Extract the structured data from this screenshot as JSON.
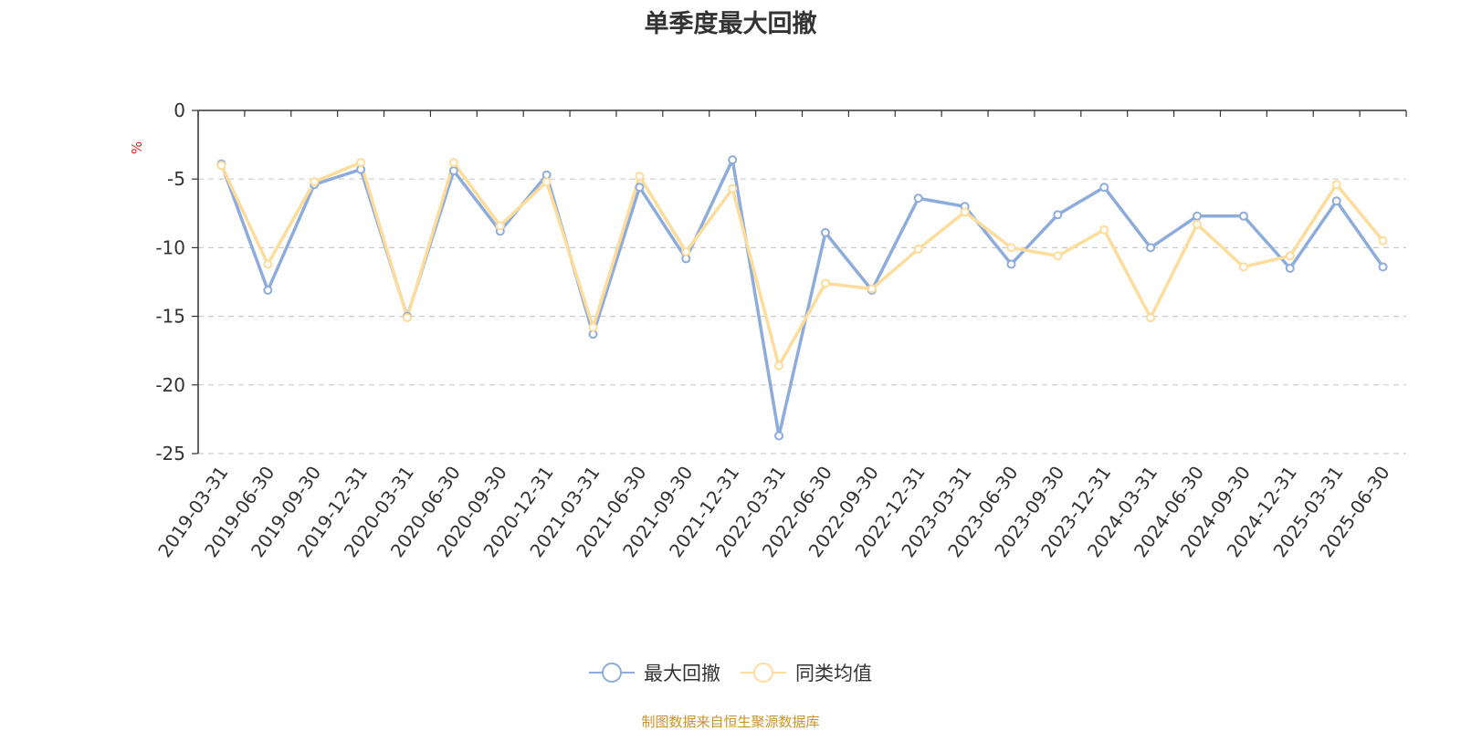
{
  "chart_data": {
    "type": "line",
    "title": "单季度最大回撤",
    "ylabel": "%",
    "xlabel": "",
    "ylim": [
      -25,
      0
    ],
    "yticks": [
      0,
      -5,
      -10,
      -15,
      -20,
      -25
    ],
    "grid": "horizontal dashed",
    "legend_position": "bottom-center",
    "x": [
      "2019-03-31",
      "2019-06-30",
      "2019-09-30",
      "2019-12-31",
      "2020-03-31",
      "2020-06-30",
      "2020-09-30",
      "2020-12-31",
      "2021-03-31",
      "2021-06-30",
      "2021-09-30",
      "2021-12-31",
      "2022-03-31",
      "2022-06-30",
      "2022-09-30",
      "2022-12-31",
      "2023-03-31",
      "2023-06-30",
      "2023-09-30",
      "2023-12-31",
      "2024-03-31",
      "2024-06-30",
      "2024-09-30",
      "2024-12-31",
      "2025-03-31",
      "2025-06-30"
    ],
    "series": [
      {
        "name": "最大回撤",
        "color": "#8eacdb",
        "values": [
          -3.9,
          -13.1,
          -5.4,
          -4.3,
          -15.0,
          -4.4,
          -8.8,
          -4.7,
          -16.3,
          -5.6,
          -10.8,
          -3.6,
          -23.7,
          -8.9,
          -13.1,
          -6.4,
          -7.0,
          -11.2,
          -7.6,
          -5.6,
          -10.0,
          -7.7,
          -7.7,
          -11.5,
          -6.6,
          -11.4
        ]
      },
      {
        "name": "同类均值",
        "color": "#fddc9c",
        "values": [
          -4.0,
          -11.2,
          -5.2,
          -3.8,
          -15.1,
          -3.8,
          -8.4,
          -5.2,
          -15.8,
          -4.8,
          -10.3,
          -5.7,
          -18.6,
          -12.6,
          -13.0,
          -10.1,
          -7.4,
          -10.0,
          -10.6,
          -8.7,
          -15.1,
          -8.3,
          -11.4,
          -10.6,
          -5.4,
          -9.5
        ]
      }
    ]
  },
  "source_note": "制图数据来自恒生聚源数据库",
  "colors": {
    "axis": "#333333",
    "grid": "#cccccc",
    "ylabel": "#e02020",
    "source": "#c8942a"
  }
}
